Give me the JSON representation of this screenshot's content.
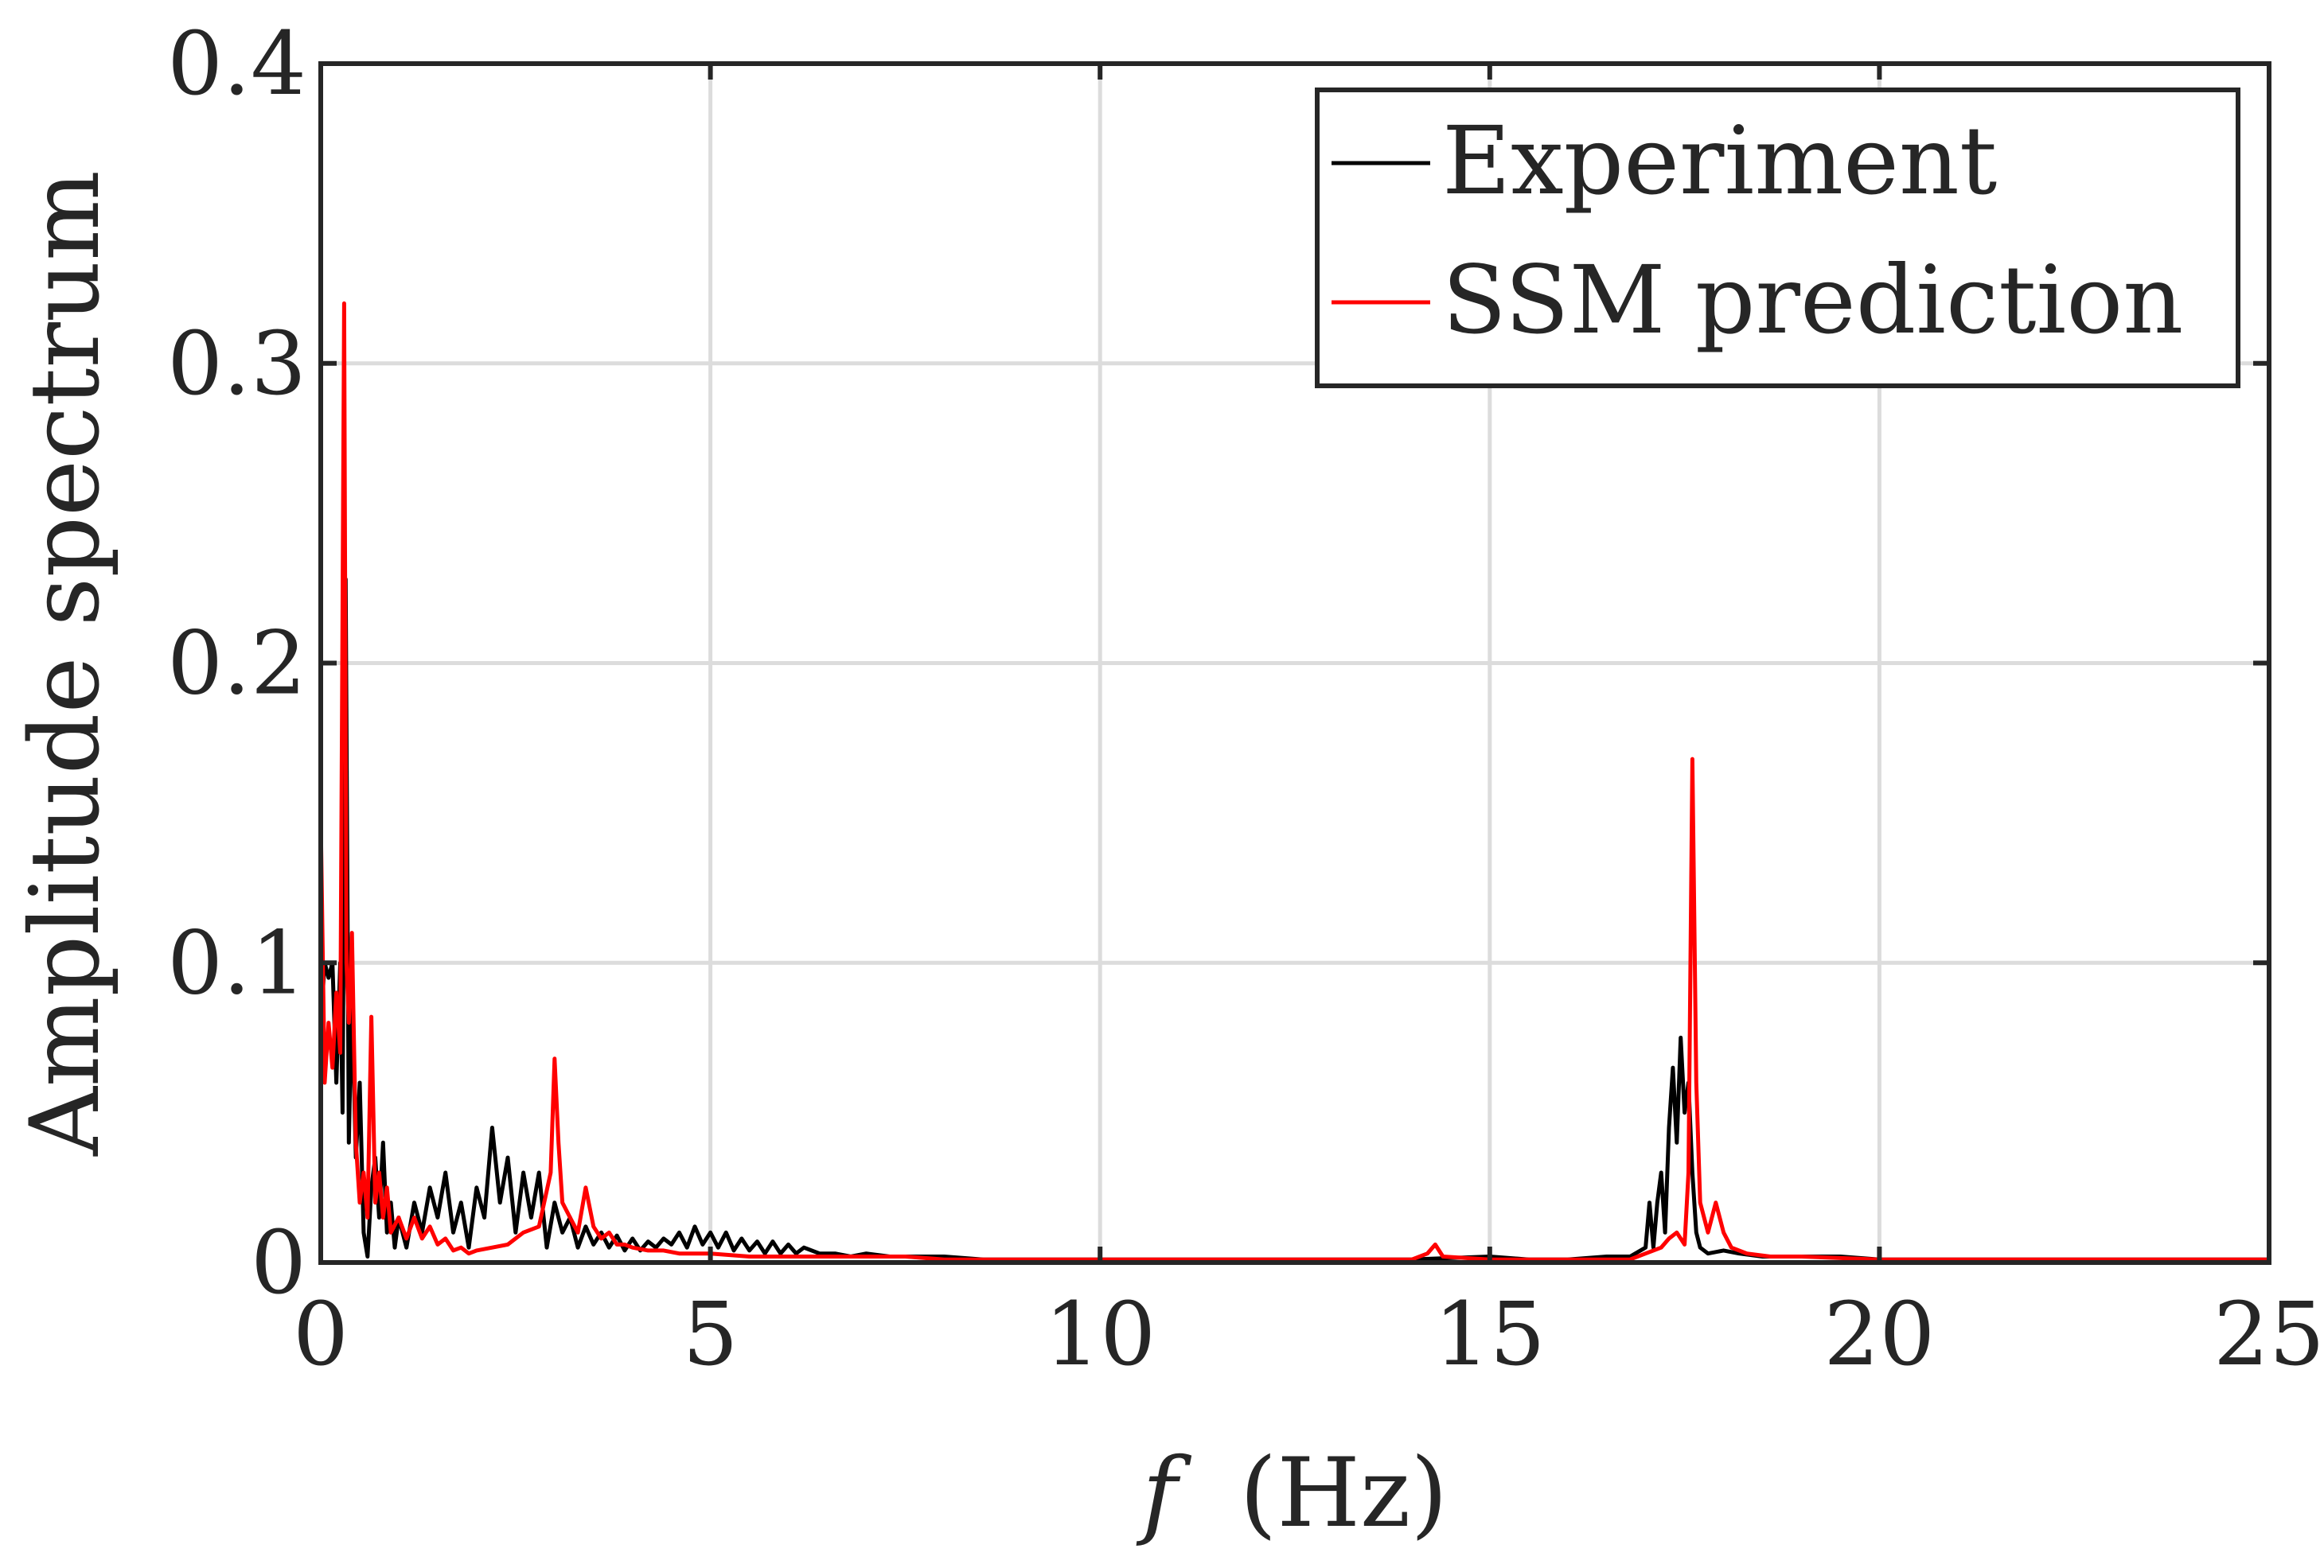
{
  "chart_data": {
    "type": "line",
    "title": "",
    "xlabel_var": "f",
    "xlabel_units": "(Hz)",
    "ylabel": "Amplitude spectrum",
    "xlim": [
      0,
      25
    ],
    "ylim": [
      0,
      0.4
    ],
    "xticks": [
      0,
      5,
      10,
      15,
      20,
      25
    ],
    "xtick_labels": [
      "0",
      "5",
      "10",
      "15",
      "20",
      "25"
    ],
    "yticks": [
      0,
      0.1,
      0.2,
      0.3,
      0.4
    ],
    "ytick_labels": [
      "0",
      "0.1",
      "0.2",
      "0.3",
      "0.4"
    ],
    "grid": true,
    "legend_position": "top-right",
    "series": [
      {
        "name": "Experiment",
        "color": "#000000",
        "points": [
          [
            0.0,
            0.08
          ],
          [
            0.05,
            0.1
          ],
          [
            0.1,
            0.095
          ],
          [
            0.15,
            0.1
          ],
          [
            0.2,
            0.06
          ],
          [
            0.25,
            0.1
          ],
          [
            0.28,
            0.05
          ],
          [
            0.32,
            0.228
          ],
          [
            0.36,
            0.04
          ],
          [
            0.4,
            0.09
          ],
          [
            0.45,
            0.035
          ],
          [
            0.5,
            0.06
          ],
          [
            0.55,
            0.01
          ],
          [
            0.6,
            0.002
          ],
          [
            0.65,
            0.025
          ],
          [
            0.7,
            0.035
          ],
          [
            0.75,
            0.015
          ],
          [
            0.8,
            0.04
          ],
          [
            0.85,
            0.01
          ],
          [
            0.9,
            0.02
          ],
          [
            0.95,
            0.005
          ],
          [
            1.0,
            0.015
          ],
          [
            1.1,
            0.005
          ],
          [
            1.2,
            0.02
          ],
          [
            1.3,
            0.01
          ],
          [
            1.4,
            0.025
          ],
          [
            1.5,
            0.015
          ],
          [
            1.6,
            0.03
          ],
          [
            1.7,
            0.01
          ],
          [
            1.8,
            0.02
          ],
          [
            1.9,
            0.005
          ],
          [
            2.0,
            0.025
          ],
          [
            2.1,
            0.015
          ],
          [
            2.2,
            0.045
          ],
          [
            2.3,
            0.02
          ],
          [
            2.4,
            0.035
          ],
          [
            2.5,
            0.01
          ],
          [
            2.6,
            0.03
          ],
          [
            2.7,
            0.015
          ],
          [
            2.8,
            0.03
          ],
          [
            2.9,
            0.005
          ],
          [
            3.0,
            0.02
          ],
          [
            3.1,
            0.01
          ],
          [
            3.2,
            0.015
          ],
          [
            3.3,
            0.005
          ],
          [
            3.4,
            0.012
          ],
          [
            3.5,
            0.006
          ],
          [
            3.6,
            0.01
          ],
          [
            3.7,
            0.005
          ],
          [
            3.8,
            0.009
          ],
          [
            3.9,
            0.004
          ],
          [
            4.0,
            0.008
          ],
          [
            4.1,
            0.004
          ],
          [
            4.2,
            0.007
          ],
          [
            4.3,
            0.005
          ],
          [
            4.4,
            0.008
          ],
          [
            4.5,
            0.006
          ],
          [
            4.6,
            0.01
          ],
          [
            4.7,
            0.005
          ],
          [
            4.8,
            0.012
          ],
          [
            4.9,
            0.006
          ],
          [
            5.0,
            0.01
          ],
          [
            5.1,
            0.005
          ],
          [
            5.2,
            0.01
          ],
          [
            5.3,
            0.004
          ],
          [
            5.4,
            0.008
          ],
          [
            5.5,
            0.004
          ],
          [
            5.6,
            0.007
          ],
          [
            5.7,
            0.003
          ],
          [
            5.8,
            0.007
          ],
          [
            5.9,
            0.003
          ],
          [
            6.0,
            0.006
          ],
          [
            6.1,
            0.003
          ],
          [
            6.2,
            0.005
          ],
          [
            6.4,
            0.003
          ],
          [
            6.6,
            0.003
          ],
          [
            6.8,
            0.002
          ],
          [
            7.0,
            0.003
          ],
          [
            7.3,
            0.002
          ],
          [
            7.6,
            0.002
          ],
          [
            8.0,
            0.002
          ],
          [
            8.5,
            0.001
          ],
          [
            9.0,
            0.001
          ],
          [
            10.0,
            0.001
          ],
          [
            11.0,
            0.001
          ],
          [
            12.0,
            0.001
          ],
          [
            13.0,
            0.001
          ],
          [
            14.0,
            0.001
          ],
          [
            15.0,
            0.002
          ],
          [
            15.5,
            0.001
          ],
          [
            16.0,
            0.001
          ],
          [
            16.5,
            0.002
          ],
          [
            16.8,
            0.002
          ],
          [
            17.0,
            0.005
          ],
          [
            17.05,
            0.02
          ],
          [
            17.1,
            0.005
          ],
          [
            17.15,
            0.02
          ],
          [
            17.2,
            0.03
          ],
          [
            17.25,
            0.01
          ],
          [
            17.3,
            0.045
          ],
          [
            17.35,
            0.065
          ],
          [
            17.4,
            0.04
          ],
          [
            17.45,
            0.075
          ],
          [
            17.5,
            0.05
          ],
          [
            17.55,
            0.06
          ],
          [
            17.6,
            0.03
          ],
          [
            17.65,
            0.01
          ],
          [
            17.7,
            0.005
          ],
          [
            17.8,
            0.003
          ],
          [
            18.0,
            0.004
          ],
          [
            18.2,
            0.003
          ],
          [
            18.5,
            0.002
          ],
          [
            19.0,
            0.002
          ],
          [
            19.5,
            0.002
          ],
          [
            20.0,
            0.001
          ],
          [
            21.0,
            0.001
          ],
          [
            22.0,
            0.001
          ],
          [
            23.0,
            0.001
          ],
          [
            24.0,
            0.001
          ],
          [
            25.0,
            0.001
          ]
        ]
      },
      {
        "name": "SSM prediction",
        "color": "#ff0000",
        "points": [
          [
            0.0,
            0.148
          ],
          [
            0.05,
            0.06
          ],
          [
            0.1,
            0.08
          ],
          [
            0.15,
            0.065
          ],
          [
            0.2,
            0.09
          ],
          [
            0.25,
            0.07
          ],
          [
            0.3,
            0.32
          ],
          [
            0.33,
            0.1
          ],
          [
            0.36,
            0.08
          ],
          [
            0.4,
            0.11
          ],
          [
            0.45,
            0.04
          ],
          [
            0.5,
            0.02
          ],
          [
            0.55,
            0.03
          ],
          [
            0.6,
            0.015
          ],
          [
            0.65,
            0.082
          ],
          [
            0.7,
            0.02
          ],
          [
            0.75,
            0.03
          ],
          [
            0.8,
            0.015
          ],
          [
            0.85,
            0.025
          ],
          [
            0.9,
            0.01
          ],
          [
            1.0,
            0.015
          ],
          [
            1.1,
            0.008
          ],
          [
            1.2,
            0.015
          ],
          [
            1.3,
            0.008
          ],
          [
            1.4,
            0.012
          ],
          [
            1.5,
            0.006
          ],
          [
            1.6,
            0.008
          ],
          [
            1.7,
            0.004
          ],
          [
            1.8,
            0.005
          ],
          [
            1.9,
            0.003
          ],
          [
            2.0,
            0.004
          ],
          [
            2.2,
            0.005
          ],
          [
            2.4,
            0.006
          ],
          [
            2.6,
            0.01
          ],
          [
            2.8,
            0.012
          ],
          [
            2.95,
            0.03
          ],
          [
            3.0,
            0.068
          ],
          [
            3.05,
            0.04
          ],
          [
            3.1,
            0.02
          ],
          [
            3.2,
            0.015
          ],
          [
            3.3,
            0.01
          ],
          [
            3.4,
            0.025
          ],
          [
            3.5,
            0.012
          ],
          [
            3.6,
            0.008
          ],
          [
            3.7,
            0.01
          ],
          [
            3.8,
            0.006
          ],
          [
            3.9,
            0.006
          ],
          [
            4.0,
            0.005
          ],
          [
            4.2,
            0.004
          ],
          [
            4.4,
            0.004
          ],
          [
            4.6,
            0.003
          ],
          [
            4.8,
            0.003
          ],
          [
            5.0,
            0.003
          ],
          [
            5.5,
            0.002
          ],
          [
            6.0,
            0.002
          ],
          [
            6.5,
            0.002
          ],
          [
            7.0,
            0.002
          ],
          [
            7.5,
            0.002
          ],
          [
            8.0,
            0.001
          ],
          [
            9.0,
            0.001
          ],
          [
            10.0,
            0.001
          ],
          [
            11.0,
            0.001
          ],
          [
            12.0,
            0.001
          ],
          [
            13.0,
            0.001
          ],
          [
            14.0,
            0.001
          ],
          [
            14.2,
            0.003
          ],
          [
            14.3,
            0.006
          ],
          [
            14.4,
            0.002
          ],
          [
            15.0,
            0.001
          ],
          [
            16.0,
            0.001
          ],
          [
            16.8,
            0.001
          ],
          [
            17.0,
            0.003
          ],
          [
            17.1,
            0.004
          ],
          [
            17.2,
            0.005
          ],
          [
            17.3,
            0.008
          ],
          [
            17.4,
            0.01
          ],
          [
            17.5,
            0.006
          ],
          [
            17.55,
            0.03
          ],
          [
            17.6,
            0.168
          ],
          [
            17.65,
            0.06
          ],
          [
            17.7,
            0.02
          ],
          [
            17.8,
            0.01
          ],
          [
            17.9,
            0.02
          ],
          [
            18.0,
            0.01
          ],
          [
            18.1,
            0.005
          ],
          [
            18.3,
            0.003
          ],
          [
            18.6,
            0.002
          ],
          [
            19.0,
            0.002
          ],
          [
            20.0,
            0.001
          ],
          [
            21.0,
            0.001
          ],
          [
            22.0,
            0.001
          ],
          [
            23.0,
            0.001
          ],
          [
            24.0,
            0.001
          ],
          [
            25.0,
            0.001
          ]
        ]
      }
    ]
  }
}
